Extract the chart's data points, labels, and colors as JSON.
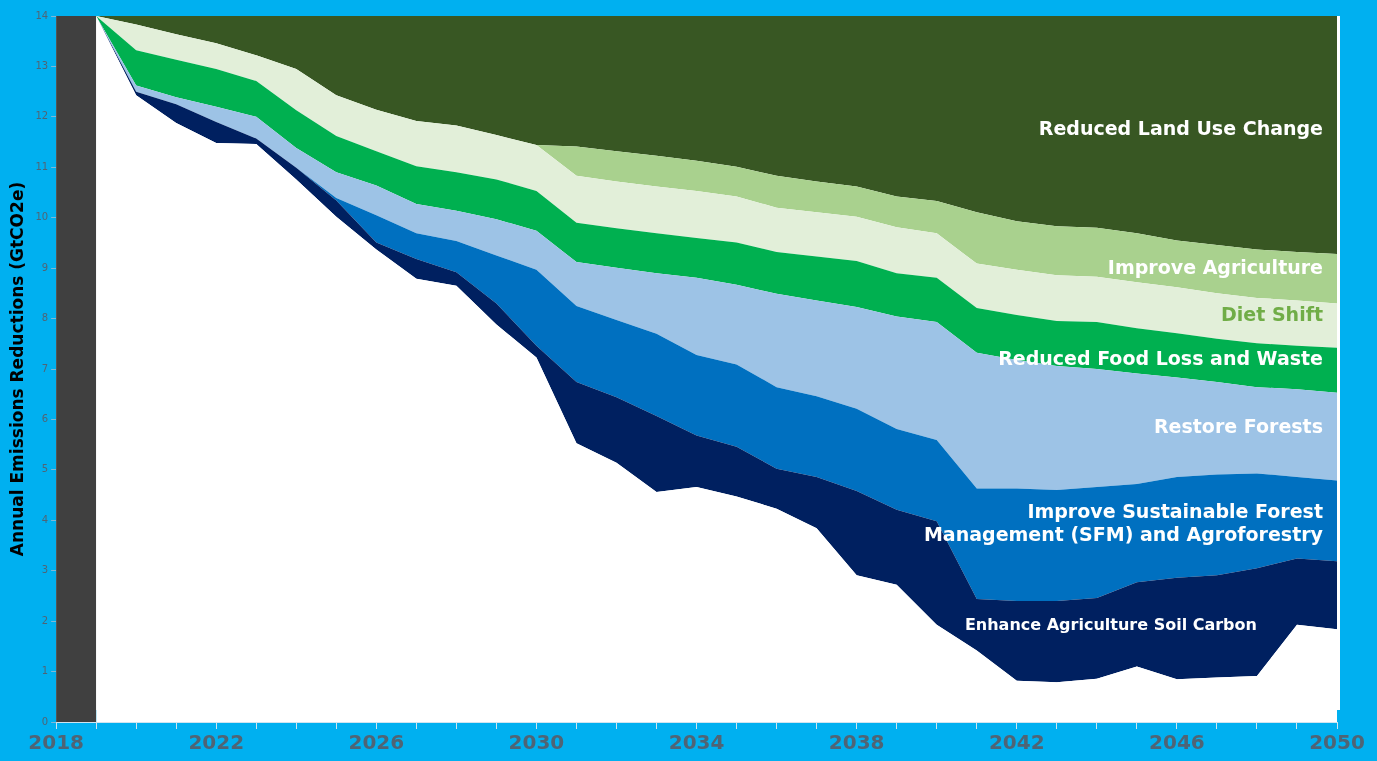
{
  "chart_data": {
    "type": "area",
    "stacked": true,
    "ylabel": "Annual Emissions Reductions (GtCO2e)",
    "xlim": [
      2018,
      2050
    ],
    "ylim": [
      0,
      14
    ],
    "x": [
      2019,
      2020,
      2021,
      2022,
      2023,
      2024,
      2025,
      2026,
      2027,
      2028,
      2029,
      2030,
      2031,
      2032,
      2033,
      2034,
      2035,
      2036,
      2037,
      2038,
      2039,
      2040,
      2041,
      2042,
      2043,
      2044,
      2045,
      2046,
      2047,
      2048,
      2049,
      2050
    ],
    "xticks": [
      2018,
      {
        "value": 2019,
        "label": null
      },
      {
        "value": 2020,
        "label": null
      },
      {
        "value": 2021,
        "label": null
      },
      2022,
      {
        "value": 2023,
        "label": null
      },
      {
        "value": 2024,
        "label": null
      },
      {
        "value": 2025,
        "label": null
      },
      2026,
      {
        "value": 2027,
        "label": null
      },
      {
        "value": 2028,
        "label": null
      },
      {
        "value": 2029,
        "label": null
      },
      2030,
      {
        "value": 2031,
        "label": null
      },
      {
        "value": 2032,
        "label": null
      },
      {
        "value": 2033,
        "label": null
      },
      2034,
      {
        "value": 2035,
        "label": null
      },
      {
        "value": 2036,
        "label": null
      },
      {
        "value": 2037,
        "label": null
      },
      2038,
      {
        "value": 2039,
        "label": null
      },
      {
        "value": 2040,
        "label": null
      },
      {
        "value": 2041,
        "label": null
      },
      2042,
      {
        "value": 2043,
        "label": null
      },
      {
        "value": 2044,
        "label": null
      },
      {
        "value": 2045,
        "label": null
      },
      2046,
      {
        "value": 2047,
        "label": null
      },
      {
        "value": 2048,
        "label": null
      },
      {
        "value": 2049,
        "label": null
      },
      2050
    ],
    "yticks": [
      0,
      1,
      2,
      3,
      4,
      5,
      6,
      7,
      8,
      9,
      10,
      11,
      12,
      13,
      14
    ],
    "grid": false,
    "legend": false,
    "series": [
      {
        "color": "#ffffff",
        "values": [
          14,
          12.43,
          11.88,
          11.48,
          11.46,
          10.76,
          10.02,
          9.37,
          8.79,
          8.65,
          7.88,
          7.23,
          5.53,
          5.14,
          4.56,
          4.66,
          4.47,
          4.23,
          3.84,
          2.91,
          2.72,
          1.93,
          1.42,
          0.82,
          0.79,
          0.86,
          1.1,
          0.85,
          0.88,
          0.91,
          1.93,
          1.84
        ]
      },
      {
        "name": "Enhance Agriculture Soil Carbon",
        "color": "#002060",
        "values": [
          0,
          0.07,
          0.37,
          0.42,
          0.11,
          0.23,
          0.32,
          0.14,
          0.39,
          0.27,
          0.42,
          0.23,
          1.21,
          1.3,
          1.51,
          1.02,
          0.99,
          0.79,
          1.02,
          1.67,
          1.49,
          2.05,
          1.02,
          1.58,
          1.61,
          1.6,
          1.67,
          2.01,
          2.03,
          2.14,
          1.31,
          1.35
        ]
      },
      {
        "name": "Improve Sustainable Forest Management (SFM) and Agroforestry",
        "color": "#0070c0",
        "values": [
          0,
          0,
          0,
          0,
          0,
          0,
          0.05,
          0.54,
          0.51,
          0.62,
          0.95,
          1.51,
          1.51,
          1.53,
          1.63,
          1.6,
          1.63,
          1.62,
          1.6,
          1.63,
          1.6,
          1.61,
          2.19,
          2.23,
          2.2,
          2.2,
          1.95,
          2,
          2,
          1.88,
          1.62,
          1.6
        ]
      },
      {
        "name": "Restore Forests",
        "color": "#9dc3e6",
        "values": [
          0,
          0.12,
          0.14,
          0.3,
          0.43,
          0.39,
          0.51,
          0.59,
          0.58,
          0.6,
          0.72,
          0.77,
          0.87,
          1.04,
          1.2,
          1.53,
          1.58,
          1.85,
          1.9,
          2.02,
          2.23,
          2.34,
          2.69,
          2.55,
          2.46,
          2.34,
          2.19,
          1.97,
          1.83,
          1.71,
          1.74,
          1.74
        ]
      },
      {
        "name": "Reduced Food Loss and Waste",
        "color": "#00b050",
        "values": [
          0,
          0.7,
          0.74,
          0.75,
          0.71,
          0.75,
          0.72,
          0.68,
          0.75,
          0.76,
          0.79,
          0.79,
          0.78,
          0.78,
          0.79,
          0.79,
          0.84,
          0.83,
          0.87,
          0.91,
          0.86,
          0.88,
          0.89,
          0.89,
          0.89,
          0.93,
          0.9,
          0.88,
          0.86,
          0.87,
          0.86,
          0.89
        ]
      },
      {
        "name": "Diet Shift",
        "color": "#e2efd9",
        "values": [
          0,
          0.51,
          0.51,
          0.51,
          0.51,
          0.82,
          0.81,
          0.82,
          0.9,
          0.93,
          0.88,
          0.91,
          0.93,
          0.93,
          0.93,
          0.93,
          0.91,
          0.88,
          0.88,
          0.88,
          0.91,
          0.88,
          0.88,
          0.9,
          0.91,
          0.9,
          0.91,
          0.91,
          0.9,
          0.9,
          0.9,
          0.88
        ]
      },
      {
        "name": "Improve Agriculture",
        "color": "#a9d18e",
        "values": [
          0,
          0,
          0,
          0,
          0,
          0,
          0,
          0,
          0,
          0,
          0,
          0,
          0.58,
          0.6,
          0.61,
          0.6,
          0.59,
          0.63,
          0.61,
          0.6,
          0.61,
          0.64,
          1.02,
          0.96,
          0.97,
          0.97,
          0.97,
          0.93,
          0.96,
          0.96,
          0.96,
          0.98
        ]
      },
      {
        "name": "Reduced Land Use Change",
        "color": "#385723",
        "values": [
          0,
          0.17,
          0.36,
          0.54,
          0.78,
          1.05,
          1.57,
          1.86,
          2.08,
          2.17,
          2.36,
          2.56,
          2.59,
          2.68,
          2.77,
          2.87,
          2.99,
          3.17,
          3.28,
          3.38,
          3.58,
          3.67,
          3.89,
          4.07,
          4.17,
          4.2,
          4.31,
          4.45,
          4.54,
          4.63,
          4.68,
          4.72
        ]
      }
    ],
    "bands": [
      {
        "axis": "x",
        "from": 2018,
        "to": 2019,
        "color": "#404040"
      }
    ]
  }
}
